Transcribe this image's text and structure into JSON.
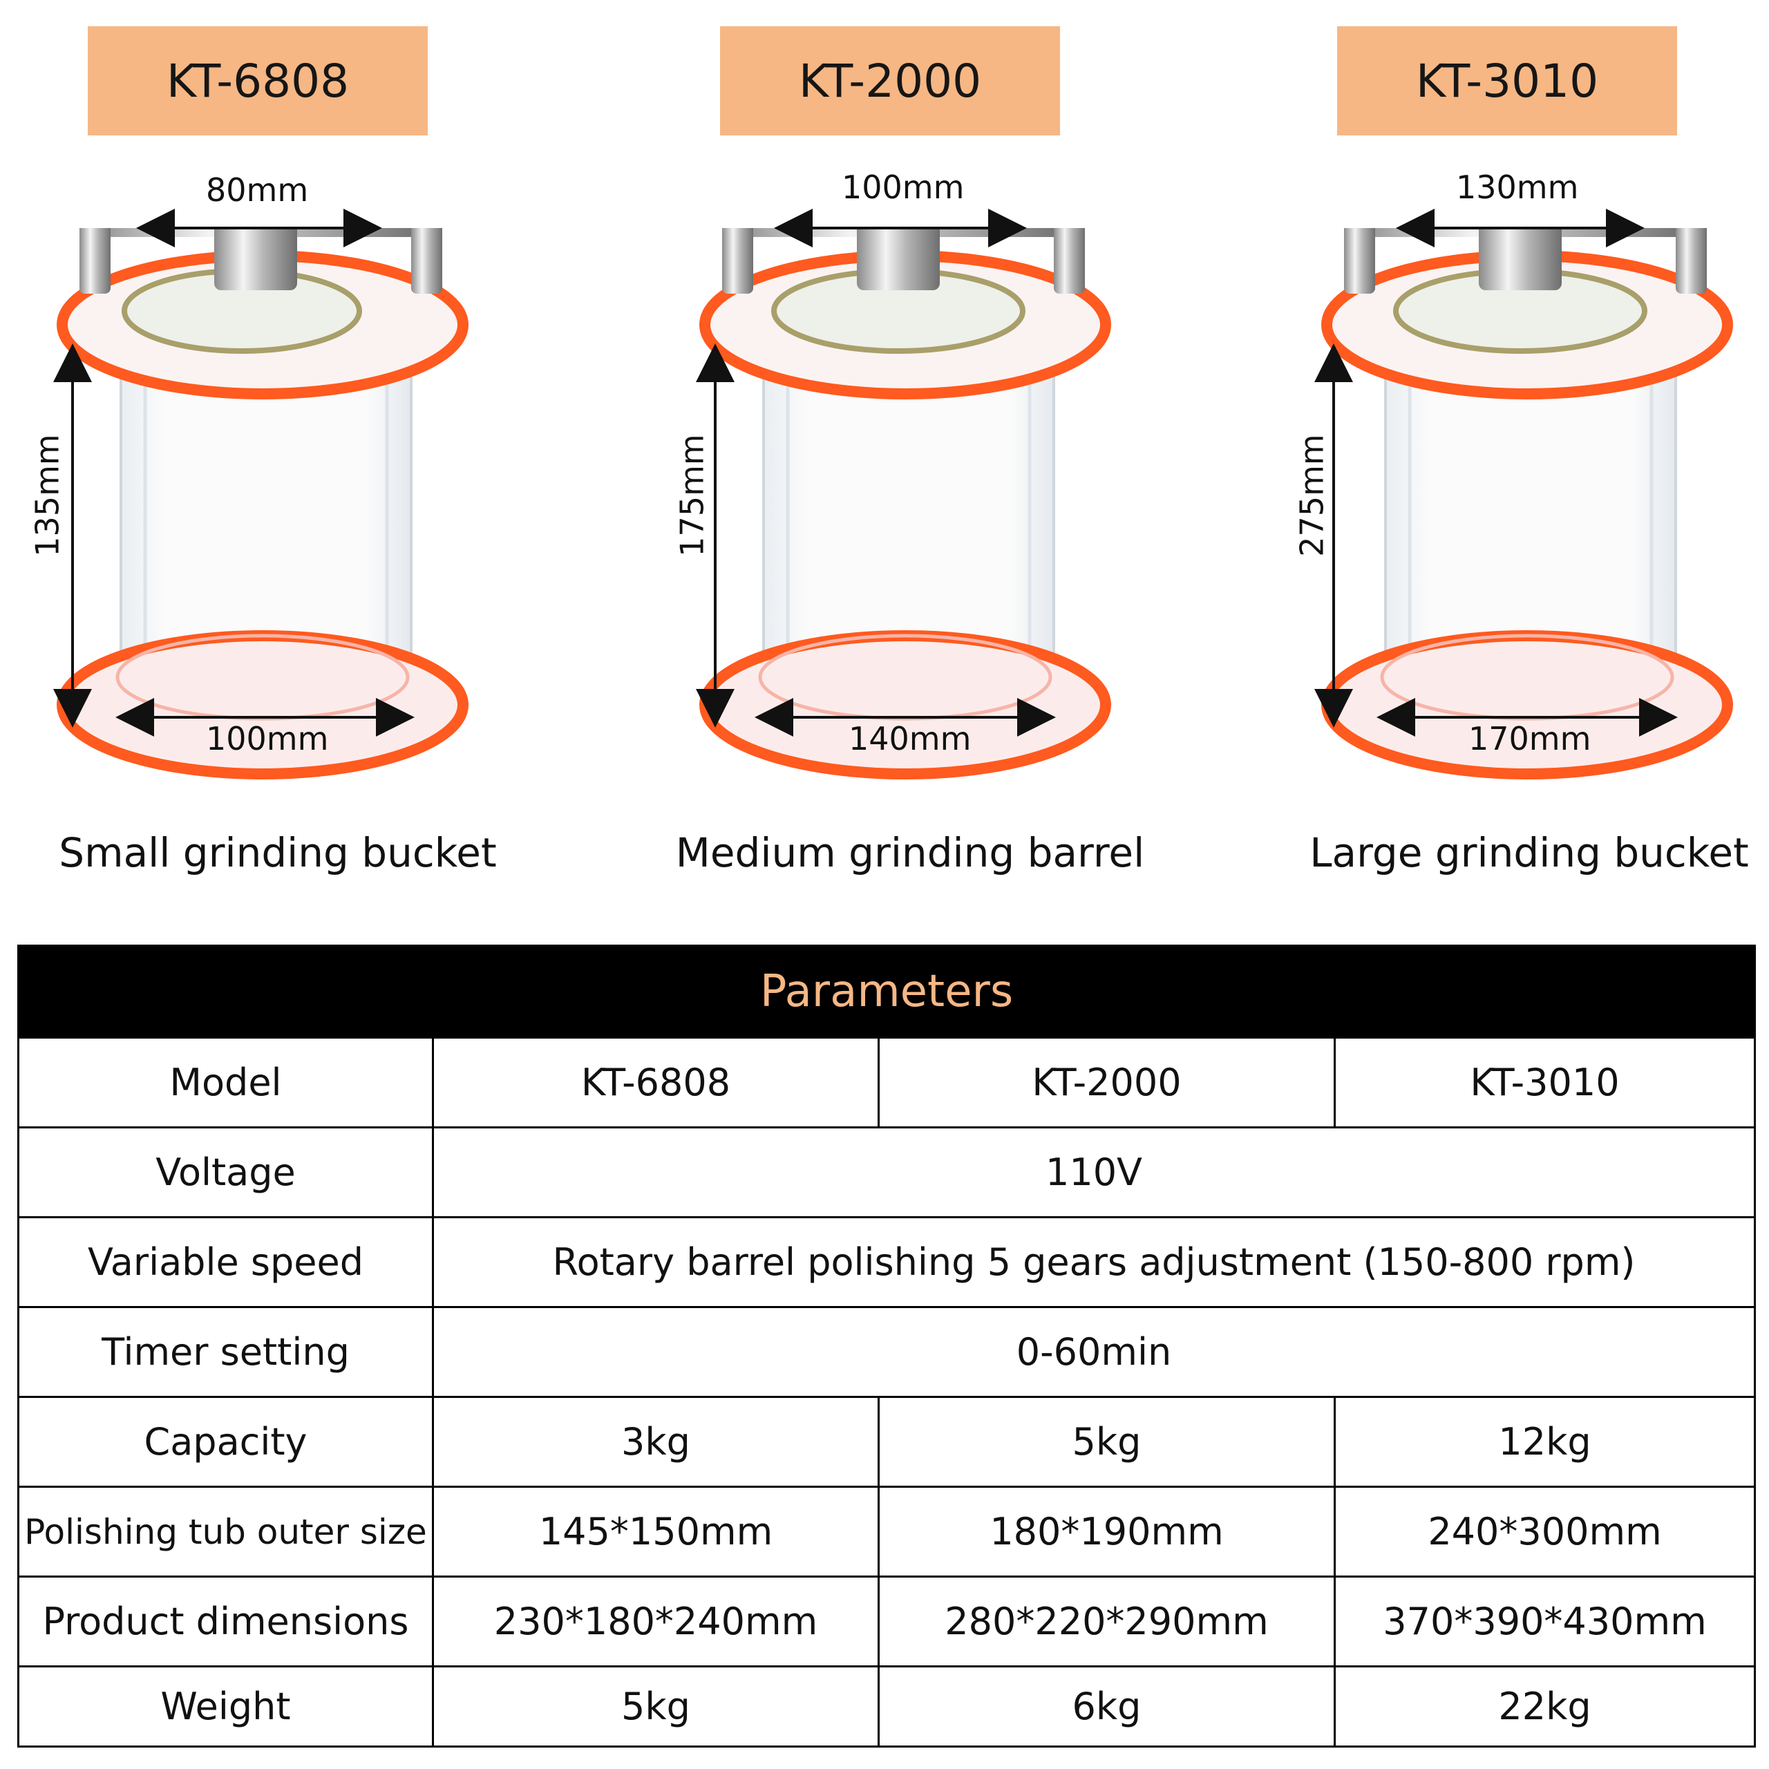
{
  "models": [
    {
      "tag": "KT-6808",
      "top_width": "80mm",
      "height": "135mm",
      "bottom_width": "100mm",
      "caption": "Small grinding bucket"
    },
    {
      "tag": "KT-2000",
      "top_width": "100mm",
      "height": "175mm",
      "bottom_width": "140mm",
      "caption": "Medium grinding barrel"
    },
    {
      "tag": "KT-3010",
      "top_width": "130mm",
      "height": "275mm",
      "bottom_width": "170mm",
      "caption": "Large grinding bucket"
    }
  ],
  "table": {
    "title": "Parameters",
    "rows": {
      "model": {
        "label": "Model",
        "values": [
          "KT-6808",
          "KT-2000",
          "KT-3010"
        ]
      },
      "voltage": {
        "label": "Voltage",
        "value": "110V"
      },
      "speed": {
        "label": "Variable speed",
        "value": "Rotary barrel polishing 5 gears adjustment (150-800 rpm)"
      },
      "timer": {
        "label": "Timer setting",
        "value": "0-60min"
      },
      "capacity": {
        "label": "Capacity",
        "values": [
          "3kg",
          "5kg",
          "12kg"
        ]
      },
      "tub": {
        "label": "Polishing tub outer size",
        "values": [
          "145*150mm",
          "180*190mm",
          "240*300mm"
        ]
      },
      "dims": {
        "label": "Product dimensions",
        "values": [
          "230*180*240mm",
          "280*220*290mm",
          "370*390*430mm"
        ]
      },
      "weight": {
        "label": "Weight",
        "values": [
          "5kg",
          "6kg",
          "22kg"
        ]
      }
    }
  },
  "colors": {
    "tag_bg": "#f6b784",
    "ring": "#ff5a1f",
    "header_text": "#f6b784"
  }
}
